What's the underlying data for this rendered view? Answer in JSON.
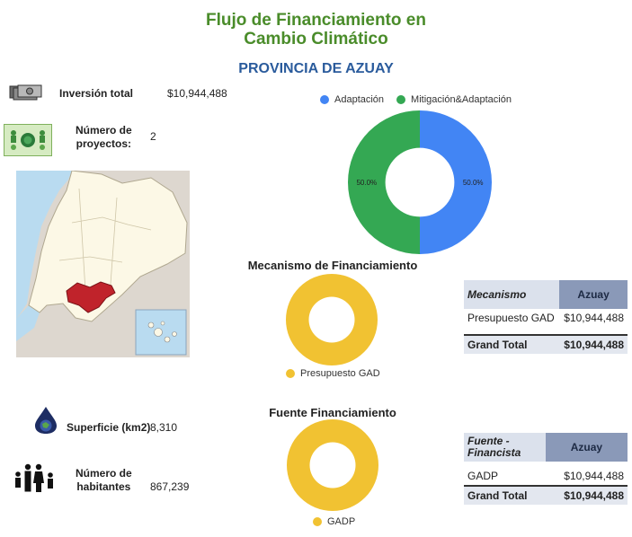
{
  "header": {
    "title_line1": "Flujo de Financiamiento en",
    "title_line2": "Cambio Climático",
    "province": "PROVINCIA DE AZUAY"
  },
  "kpis": {
    "inversion_label": "Inversión total",
    "inversion_value": "$10,944,488",
    "proyectos_label_1": "Número de",
    "proyectos_label_2": "proyectos:",
    "proyectos_value": "2",
    "superficie_label": "Superficie (km2)",
    "superficie_value": "8,310",
    "habitantes_label_1": "Número de",
    "habitantes_label_2": "habitantes",
    "habitantes_value": "867,239"
  },
  "icons": {
    "money": "money-icon",
    "projects": "projects-icon",
    "map": "ecuador-map-icon",
    "globe": "globe-icon",
    "people": "people-icon"
  },
  "colors": {
    "title": "#4a8c2a",
    "province": "#2a5b9c",
    "adaptacion": "#4285f4",
    "mitigacion": "#34a853",
    "gad": "#f1c232",
    "highlight_region": "#c0232b"
  },
  "mecanismo_table": {
    "col1": "Mecanismo",
    "col2": "Azuay",
    "rows": [
      [
        "Presupuesto GAD",
        "$10,944,488"
      ]
    ],
    "total_label": "Grand Total",
    "total_value": "$10,944,488"
  },
  "fuente_table": {
    "col1_line1": "Fuente -",
    "col1_line2": "Financista",
    "col2": "Azuay",
    "rows": [
      [
        "GADP",
        "$10,944,488"
      ]
    ],
    "total_label": "Grand Total",
    "total_value": "$10,944,488"
  },
  "chart_data": [
    {
      "type": "pie",
      "title": "",
      "categories": [
        "Adaptación",
        "Mitigación&Adaptación"
      ],
      "values": [
        50.0,
        50.0
      ],
      "data_labels": [
        "50.0%",
        "50.0%"
      ],
      "colors": [
        "#4285f4",
        "#34a853"
      ],
      "legend": "top",
      "donut": true
    },
    {
      "type": "pie",
      "title": "Mecanismo de Financiamiento",
      "categories": [
        "Presupuesto GAD"
      ],
      "values": [
        100
      ],
      "colors": [
        "#f1c232"
      ],
      "legend": "bottom",
      "donut": true
    },
    {
      "type": "pie",
      "title": "Fuente Financiamiento",
      "categories": [
        "GADP"
      ],
      "values": [
        100
      ],
      "colors": [
        "#f1c232"
      ],
      "legend": "bottom",
      "donut": true
    }
  ]
}
